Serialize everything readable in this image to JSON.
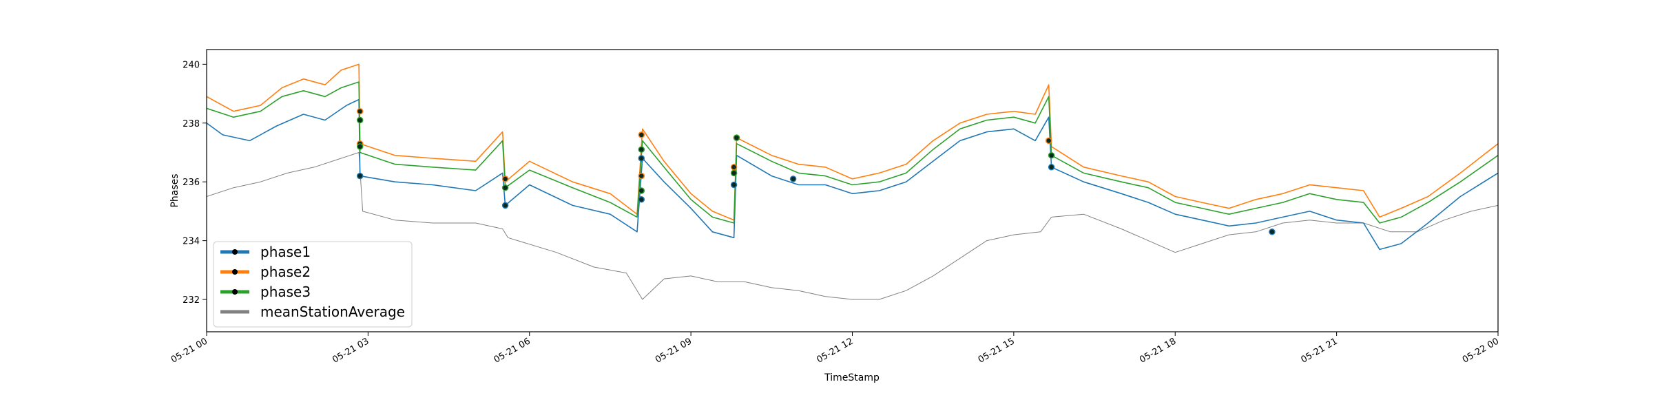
{
  "chart_data": {
    "type": "line",
    "title": "",
    "xlabel": "TimeStamp",
    "ylabel": "Phases",
    "x_range_hours": [
      0,
      24
    ],
    "ylim": [
      230.9,
      240.5
    ],
    "x_ticks": [
      {
        "hour": 0,
        "label": "05-21 00"
      },
      {
        "hour": 3,
        "label": "05-21 03"
      },
      {
        "hour": 6,
        "label": "05-21 06"
      },
      {
        "hour": 9,
        "label": "05-21 09"
      },
      {
        "hour": 12,
        "label": "05-21 12"
      },
      {
        "hour": 15,
        "label": "05-21 15"
      },
      {
        "hour": 18,
        "label": "05-21 18"
      },
      {
        "hour": 21,
        "label": "05-21 21"
      },
      {
        "hour": 24,
        "label": "05-22 00"
      }
    ],
    "y_ticks": [
      232,
      234,
      236,
      238,
      240
    ],
    "grid": false,
    "legend_position": "lower-left",
    "series": [
      {
        "name": "phase1",
        "color": "#1f77b4",
        "points": [
          [
            0,
            238.0
          ],
          [
            0.3,
            237.6
          ],
          [
            0.8,
            237.4
          ],
          [
            1.3,
            237.9
          ],
          [
            1.8,
            238.3
          ],
          [
            2.2,
            238.1
          ],
          [
            2.6,
            238.6
          ],
          [
            2.83,
            238.8
          ],
          [
            2.85,
            236.2
          ],
          [
            3.5,
            236.0
          ],
          [
            4.2,
            235.9
          ],
          [
            5,
            235.7
          ],
          [
            5.5,
            236.3
          ],
          [
            5.55,
            235.2
          ],
          [
            6,
            235.9
          ],
          [
            6.8,
            235.2
          ],
          [
            7.5,
            234.9
          ],
          [
            8.0,
            234.3
          ],
          [
            8.1,
            236.8
          ],
          [
            8.5,
            236.0
          ],
          [
            9.0,
            235.1
          ],
          [
            9.4,
            234.3
          ],
          [
            9.8,
            234.1
          ],
          [
            9.85,
            236.9
          ],
          [
            10.5,
            236.2
          ],
          [
            11,
            235.9
          ],
          [
            11.5,
            235.9
          ],
          [
            12,
            235.6
          ],
          [
            12.5,
            235.7
          ],
          [
            13,
            236.0
          ],
          [
            13.5,
            236.7
          ],
          [
            14,
            237.4
          ],
          [
            14.5,
            237.7
          ],
          [
            15,
            237.8
          ],
          [
            15.4,
            237.4
          ],
          [
            15.65,
            238.2
          ],
          [
            15.7,
            236.5
          ],
          [
            16.3,
            236.0
          ],
          [
            17,
            235.6
          ],
          [
            17.5,
            235.3
          ],
          [
            18,
            234.9
          ],
          [
            18.5,
            234.7
          ],
          [
            19,
            234.5
          ],
          [
            19.5,
            234.6
          ],
          [
            20,
            234.8
          ],
          [
            20.5,
            235.0
          ],
          [
            21,
            234.7
          ],
          [
            21.5,
            234.6
          ],
          [
            21.8,
            233.7
          ],
          [
            22.2,
            233.9
          ],
          [
            22.7,
            234.6
          ],
          [
            23.3,
            235.5
          ],
          [
            24,
            236.3
          ]
        ]
      },
      {
        "name": "phase2",
        "color": "#ff7f0e",
        "points": [
          [
            0,
            238.9
          ],
          [
            0.5,
            238.4
          ],
          [
            1,
            238.6
          ],
          [
            1.4,
            239.2
          ],
          [
            1.8,
            239.5
          ],
          [
            2.2,
            239.3
          ],
          [
            2.5,
            239.8
          ],
          [
            2.83,
            240.0
          ],
          [
            2.85,
            237.3
          ],
          [
            3.5,
            236.9
          ],
          [
            4.2,
            236.8
          ],
          [
            5,
            236.7
          ],
          [
            5.5,
            237.7
          ],
          [
            5.55,
            236.0
          ],
          [
            6,
            236.7
          ],
          [
            6.8,
            236.0
          ],
          [
            7.5,
            235.6
          ],
          [
            8.0,
            234.9
          ],
          [
            8.1,
            237.8
          ],
          [
            8.5,
            236.7
          ],
          [
            9.0,
            235.6
          ],
          [
            9.4,
            235.0
          ],
          [
            9.8,
            234.7
          ],
          [
            9.85,
            237.5
          ],
          [
            10.5,
            236.9
          ],
          [
            11,
            236.6
          ],
          [
            11.5,
            236.5
          ],
          [
            12,
            236.1
          ],
          [
            12.5,
            236.3
          ],
          [
            13,
            236.6
          ],
          [
            13.5,
            237.4
          ],
          [
            14,
            238.0
          ],
          [
            14.5,
            238.3
          ],
          [
            15,
            238.4
          ],
          [
            15.4,
            238.3
          ],
          [
            15.65,
            239.3
          ],
          [
            15.7,
            237.2
          ],
          [
            16.3,
            236.5
          ],
          [
            17,
            236.2
          ],
          [
            17.5,
            236.0
          ],
          [
            18,
            235.5
          ],
          [
            18.5,
            235.3
          ],
          [
            19,
            235.1
          ],
          [
            19.5,
            235.4
          ],
          [
            20,
            235.6
          ],
          [
            20.5,
            235.9
          ],
          [
            21,
            235.8
          ],
          [
            21.5,
            235.7
          ],
          [
            21.8,
            234.8
          ],
          [
            22.2,
            235.1
          ],
          [
            22.7,
            235.5
          ],
          [
            23.3,
            236.3
          ],
          [
            24,
            237.3
          ]
        ]
      },
      {
        "name": "phase3",
        "color": "#2ca02c",
        "points": [
          [
            0,
            238.5
          ],
          [
            0.5,
            238.2
          ],
          [
            1,
            238.4
          ],
          [
            1.4,
            238.9
          ],
          [
            1.8,
            239.1
          ],
          [
            2.2,
            238.9
          ],
          [
            2.5,
            239.2
          ],
          [
            2.83,
            239.4
          ],
          [
            2.85,
            237.0
          ],
          [
            3.5,
            236.6
          ],
          [
            4.2,
            236.5
          ],
          [
            5,
            236.4
          ],
          [
            5.5,
            237.4
          ],
          [
            5.55,
            235.8
          ],
          [
            6,
            236.4
          ],
          [
            6.8,
            235.8
          ],
          [
            7.5,
            235.3
          ],
          [
            8.0,
            234.8
          ],
          [
            8.1,
            237.4
          ],
          [
            8.5,
            236.5
          ],
          [
            9.0,
            235.4
          ],
          [
            9.4,
            234.8
          ],
          [
            9.8,
            234.6
          ],
          [
            9.85,
            237.3
          ],
          [
            10.5,
            236.7
          ],
          [
            11,
            236.3
          ],
          [
            11.5,
            236.2
          ],
          [
            12,
            235.9
          ],
          [
            12.5,
            236.0
          ],
          [
            13,
            236.3
          ],
          [
            13.5,
            237.1
          ],
          [
            14,
            237.8
          ],
          [
            14.5,
            238.1
          ],
          [
            15,
            238.2
          ],
          [
            15.4,
            238.0
          ],
          [
            15.65,
            238.9
          ],
          [
            15.7,
            236.9
          ],
          [
            16.3,
            236.3
          ],
          [
            17,
            236.0
          ],
          [
            17.5,
            235.8
          ],
          [
            18,
            235.3
          ],
          [
            18.5,
            235.1
          ],
          [
            19,
            234.9
          ],
          [
            19.5,
            235.1
          ],
          [
            20,
            235.3
          ],
          [
            20.5,
            235.6
          ],
          [
            21,
            235.4
          ],
          [
            21.5,
            235.3
          ],
          [
            21.8,
            234.6
          ],
          [
            22.2,
            234.8
          ],
          [
            22.7,
            235.3
          ],
          [
            23.3,
            236.0
          ],
          [
            24,
            236.9
          ]
        ]
      },
      {
        "name": "meanStationAverage",
        "color": "#808080",
        "points": [
          [
            0,
            235.5
          ],
          [
            0.5,
            235.8
          ],
          [
            1,
            236.0
          ],
          [
            1.5,
            236.3
          ],
          [
            2,
            236.5
          ],
          [
            2.5,
            236.8
          ],
          [
            2.83,
            237.0
          ],
          [
            2.9,
            235.0
          ],
          [
            3.5,
            234.7
          ],
          [
            4.2,
            234.6
          ],
          [
            5,
            234.6
          ],
          [
            5.5,
            234.4
          ],
          [
            5.6,
            234.1
          ],
          [
            6.5,
            233.6
          ],
          [
            7.2,
            233.1
          ],
          [
            7.8,
            232.9
          ],
          [
            8.1,
            232.0
          ],
          [
            8.5,
            232.7
          ],
          [
            9.0,
            232.8
          ],
          [
            9.5,
            232.6
          ],
          [
            10,
            232.6
          ],
          [
            10.5,
            232.4
          ],
          [
            11,
            232.3
          ],
          [
            11.5,
            232.1
          ],
          [
            12,
            232.0
          ],
          [
            12.5,
            232.0
          ],
          [
            13,
            232.3
          ],
          [
            13.5,
            232.8
          ],
          [
            14,
            233.4
          ],
          [
            14.5,
            234.0
          ],
          [
            15,
            234.2
          ],
          [
            15.5,
            234.3
          ],
          [
            15.7,
            234.8
          ],
          [
            16.3,
            234.9
          ],
          [
            17,
            234.4
          ],
          [
            17.5,
            234.0
          ],
          [
            18,
            233.6
          ],
          [
            18.5,
            233.9
          ],
          [
            19,
            234.2
          ],
          [
            19.5,
            234.3
          ],
          [
            20,
            234.6
          ],
          [
            20.5,
            234.7
          ],
          [
            21,
            234.6
          ],
          [
            21.5,
            234.6
          ],
          [
            22,
            234.3
          ],
          [
            22.5,
            234.3
          ],
          [
            23,
            234.7
          ],
          [
            23.5,
            235.0
          ],
          [
            24,
            235.2
          ]
        ]
      }
    ],
    "markers": [
      {
        "series": "phase1",
        "x": 2.85,
        "y": 236.2
      },
      {
        "series": "phase2",
        "x": 2.85,
        "y": 238.4
      },
      {
        "series": "phase3",
        "x": 2.85,
        "y": 238.1
      },
      {
        "series": "phase2",
        "x": 2.85,
        "y": 237.3
      },
      {
        "series": "phase3",
        "x": 2.85,
        "y": 237.2
      },
      {
        "series": "phase2",
        "x": 5.55,
        "y": 236.1
      },
      {
        "series": "phase3",
        "x": 5.55,
        "y": 235.8
      },
      {
        "series": "phase1",
        "x": 5.55,
        "y": 235.2
      },
      {
        "series": "phase2",
        "x": 8.08,
        "y": 237.6
      },
      {
        "series": "phase3",
        "x": 8.08,
        "y": 237.1
      },
      {
        "series": "phase1",
        "x": 8.08,
        "y": 236.8
      },
      {
        "series": "phase2",
        "x": 8.08,
        "y": 236.2
      },
      {
        "series": "phase3",
        "x": 8.08,
        "y": 235.7
      },
      {
        "series": "phase1",
        "x": 8.08,
        "y": 235.4
      },
      {
        "series": "phase2",
        "x": 9.85,
        "y": 237.5
      },
      {
        "series": "phase3",
        "x": 9.85,
        "y": 237.5
      },
      {
        "series": "phase2",
        "x": 9.8,
        "y": 236.5
      },
      {
        "series": "phase3",
        "x": 9.8,
        "y": 236.3
      },
      {
        "series": "phase1",
        "x": 9.8,
        "y": 235.9
      },
      {
        "series": "phase1",
        "x": 10.9,
        "y": 236.1
      },
      {
        "series": "phase2",
        "x": 15.65,
        "y": 237.4
      },
      {
        "series": "phase3",
        "x": 15.7,
        "y": 236.9
      },
      {
        "series": "phase1",
        "x": 15.7,
        "y": 236.5
      },
      {
        "series": "phase1",
        "x": 19.8,
        "y": 234.3
      }
    ]
  }
}
